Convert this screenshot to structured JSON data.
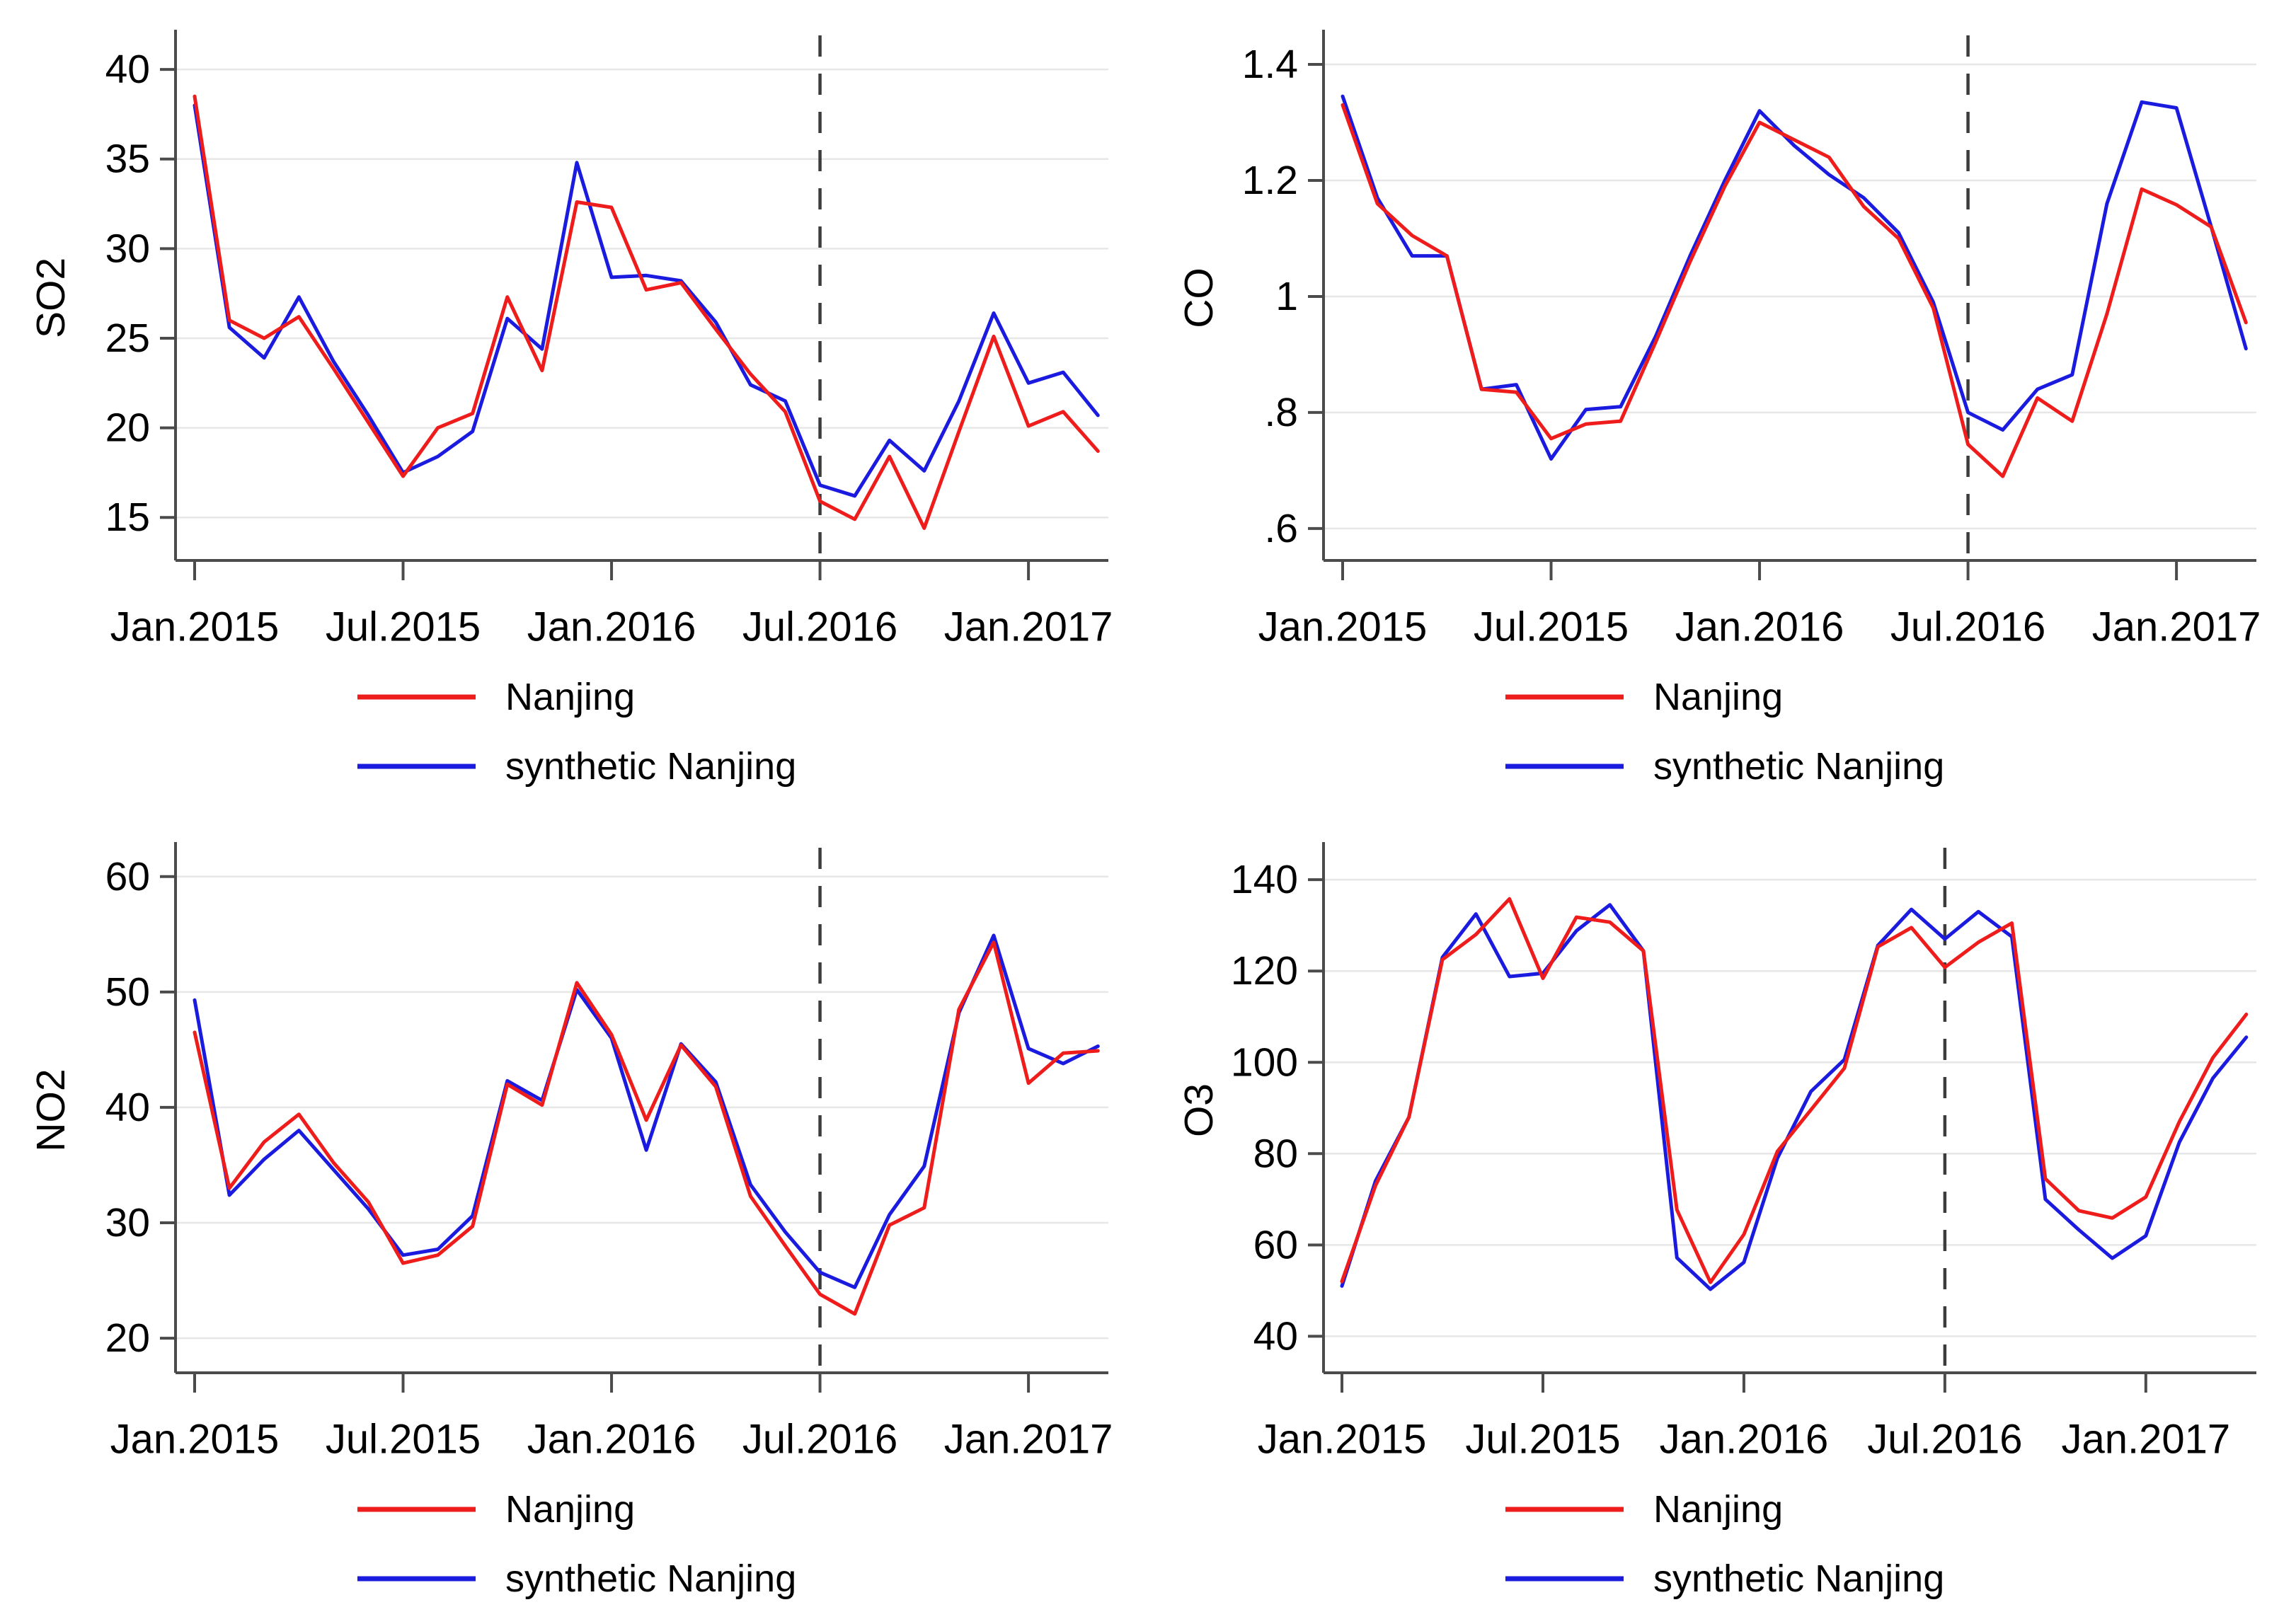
{
  "figure": {
    "description": "Four line charts comparing observed and synthetic pollutant levels in Nanjing",
    "background": "#ffffff"
  },
  "colors": {
    "nanjing": "#ef1c1c",
    "synthetic": "#1b1be0",
    "grid": "#e7e7e7",
    "axis": "#4b4b4b",
    "dashed": "#3c3c3c",
    "text": "#000000"
  },
  "legend": {
    "items": [
      {
        "key": "nanjing",
        "label": "Nanjing"
      },
      {
        "key": "synthetic",
        "label": "synthetic Nanjing"
      }
    ]
  },
  "x_axis": {
    "tick_labels": [
      "Jan.2015",
      "Jul.2015",
      "Jan.2016",
      "Jul.2016",
      "Jan.2017"
    ],
    "tick_indices": [
      0,
      6,
      12,
      18,
      24
    ],
    "dashed_line_index": 18,
    "unit": "monthly from Jan 2015"
  },
  "chart_data": [
    {
      "id": "so2",
      "type": "line",
      "ylabel": "SO2",
      "ylim": [
        12.6,
        41.9
      ],
      "yticks": {
        "labels": [
          "15",
          "20",
          "25",
          "30",
          "35",
          "40"
        ],
        "values": [
          15,
          20,
          25,
          30,
          35,
          40
        ]
      },
      "x": {
        "n_points": 27,
        "tick_labels": [
          "Jan.2015",
          "Jul.2015",
          "Jan.2016",
          "Jul.2016",
          "Jan.2017"
        ],
        "tick_indices": [
          0,
          6,
          12,
          18,
          24
        ],
        "dashed_line_index": 18
      },
      "series": [
        {
          "name": "Nanjing",
          "color_key": "nanjing",
          "values": [
            38.5,
            26.0,
            25.0,
            26.2,
            23.3,
            20.3,
            17.3,
            20.0,
            20.8,
            27.3,
            23.2,
            32.6,
            32.3,
            27.7,
            28.1,
            25.5,
            23.0,
            20.9,
            15.9,
            14.9,
            18.4,
            14.4,
            19.8,
            25.1,
            20.1,
            20.9,
            18.7
          ]
        },
        {
          "name": "synthetic Nanjing",
          "color_key": "synthetic",
          "values": [
            38.0,
            25.6,
            23.9,
            27.3,
            23.7,
            20.7,
            17.5,
            18.4,
            19.8,
            26.1,
            24.4,
            34.8,
            28.4,
            28.5,
            28.2,
            25.9,
            22.4,
            21.5,
            16.8,
            16.2,
            19.3,
            17.6,
            21.5,
            26.4,
            22.5,
            23.1,
            20.7
          ]
        }
      ]
    },
    {
      "id": "co",
      "type": "line",
      "ylabel": "CO",
      "ylim": [
        0.545,
        1.45
      ],
      "yticks": {
        "labels": [
          ".6",
          ".8",
          "1",
          "1.2",
          "1.4"
        ],
        "values": [
          0.6,
          0.8,
          1.0,
          1.2,
          1.4
        ]
      },
      "x": {
        "n_points": 27,
        "tick_labels": [
          "Jan.2015",
          "Jul.2015",
          "Jan.2016",
          "Jul.2016",
          "Jan.2017"
        ],
        "tick_indices": [
          0,
          6,
          12,
          18,
          24
        ],
        "dashed_line_index": 18
      },
      "series": [
        {
          "name": "Nanjing",
          "color_key": "nanjing",
          "values": [
            1.33,
            1.16,
            1.105,
            1.07,
            0.84,
            0.835,
            0.755,
            0.78,
            0.785,
            0.92,
            1.06,
            1.19,
            1.3,
            1.27,
            1.24,
            1.155,
            1.1,
            0.98,
            0.745,
            0.69,
            0.825,
            0.785,
            0.97,
            1.185,
            1.158,
            1.12,
            0.955
          ]
        },
        {
          "name": "synthetic Nanjing",
          "color_key": "synthetic",
          "values": [
            1.345,
            1.17,
            1.07,
            1.07,
            0.84,
            0.848,
            0.72,
            0.805,
            0.81,
            0.93,
            1.07,
            1.2,
            1.32,
            1.26,
            1.21,
            1.17,
            1.11,
            0.99,
            0.8,
            0.77,
            0.84,
            0.865,
            1.16,
            1.335,
            1.325,
            1.12,
            0.91
          ]
        }
      ]
    },
    {
      "id": "no2",
      "type": "line",
      "ylabel": "NO2",
      "ylim": [
        17.0,
        62.5
      ],
      "yticks": {
        "labels": [
          "20",
          "30",
          "40",
          "50",
          "60"
        ],
        "values": [
          20,
          30,
          40,
          50,
          60
        ]
      },
      "x": {
        "n_points": 27,
        "tick_labels": [
          "Jan.2015",
          "Jul.2015",
          "Jan.2016",
          "Jul.2016",
          "Jan.2017"
        ],
        "tick_indices": [
          0,
          6,
          12,
          18,
          24
        ],
        "dashed_line_index": 18
      },
      "series": [
        {
          "name": "Nanjing",
          "color_key": "nanjing",
          "values": [
            46.5,
            33.0,
            37.0,
            39.4,
            35.2,
            31.8,
            26.5,
            27.2,
            29.7,
            42.0,
            40.2,
            50.8,
            46.3,
            38.9,
            45.4,
            41.8,
            32.3,
            28.0,
            23.8,
            22.1,
            29.8,
            31.3,
            48.5,
            54.3,
            42.1,
            44.7,
            44.9
          ]
        },
        {
          "name": "synthetic Nanjing",
          "color_key": "synthetic",
          "values": [
            49.3,
            32.4,
            35.5,
            38.0,
            34.6,
            31.2,
            27.2,
            27.7,
            30.6,
            42.3,
            40.6,
            50.2,
            46.0,
            36.3,
            45.5,
            42.2,
            33.3,
            29.2,
            25.7,
            24.4,
            30.7,
            34.9,
            48.2,
            54.9,
            45.1,
            43.8,
            45.3
          ]
        }
      ]
    },
    {
      "id": "o3",
      "type": "line",
      "ylabel": "O3",
      "ylim": [
        32,
        147
      ],
      "yticks": {
        "labels": [
          "40",
          "60",
          "80",
          "100",
          "120",
          "140"
        ],
        "values": [
          40,
          60,
          80,
          100,
          120,
          140
        ]
      },
      "x": {
        "n_points": 28,
        "tick_labels": [
          "Jan.2015",
          "Jul.2015",
          "Jan.2016",
          "Jul.2016",
          "Jan.2017"
        ],
        "tick_indices": [
          0,
          6,
          12,
          18,
          24
        ],
        "dashed_line_index": 18
      },
      "series": [
        {
          "name": "Nanjing",
          "color_key": "nanjing",
          "values": [
            52,
            73,
            88,
            122.5,
            128,
            135.8,
            118.4,
            131.8,
            130.7,
            124.4,
            67.7,
            51.8,
            62.3,
            80.5,
            89.6,
            98.7,
            125.3,
            129.5,
            120.8,
            126.3,
            130.5,
            74.5,
            67.5,
            65.9,
            70.5,
            87,
            101,
            110.5
          ]
        },
        {
          "name": "synthetic Nanjing",
          "color_key": "synthetic",
          "values": [
            51,
            74,
            88,
            123,
            132.5,
            118.8,
            119.5,
            128.8,
            134.5,
            124.4,
            57.2,
            50.3,
            56.2,
            79,
            93.6,
            100.6,
            125.6,
            133.5,
            127.0,
            133.0,
            127.5,
            70,
            63.3,
            57.1,
            62,
            82.5,
            96.5,
            105.5
          ]
        }
      ]
    }
  ]
}
